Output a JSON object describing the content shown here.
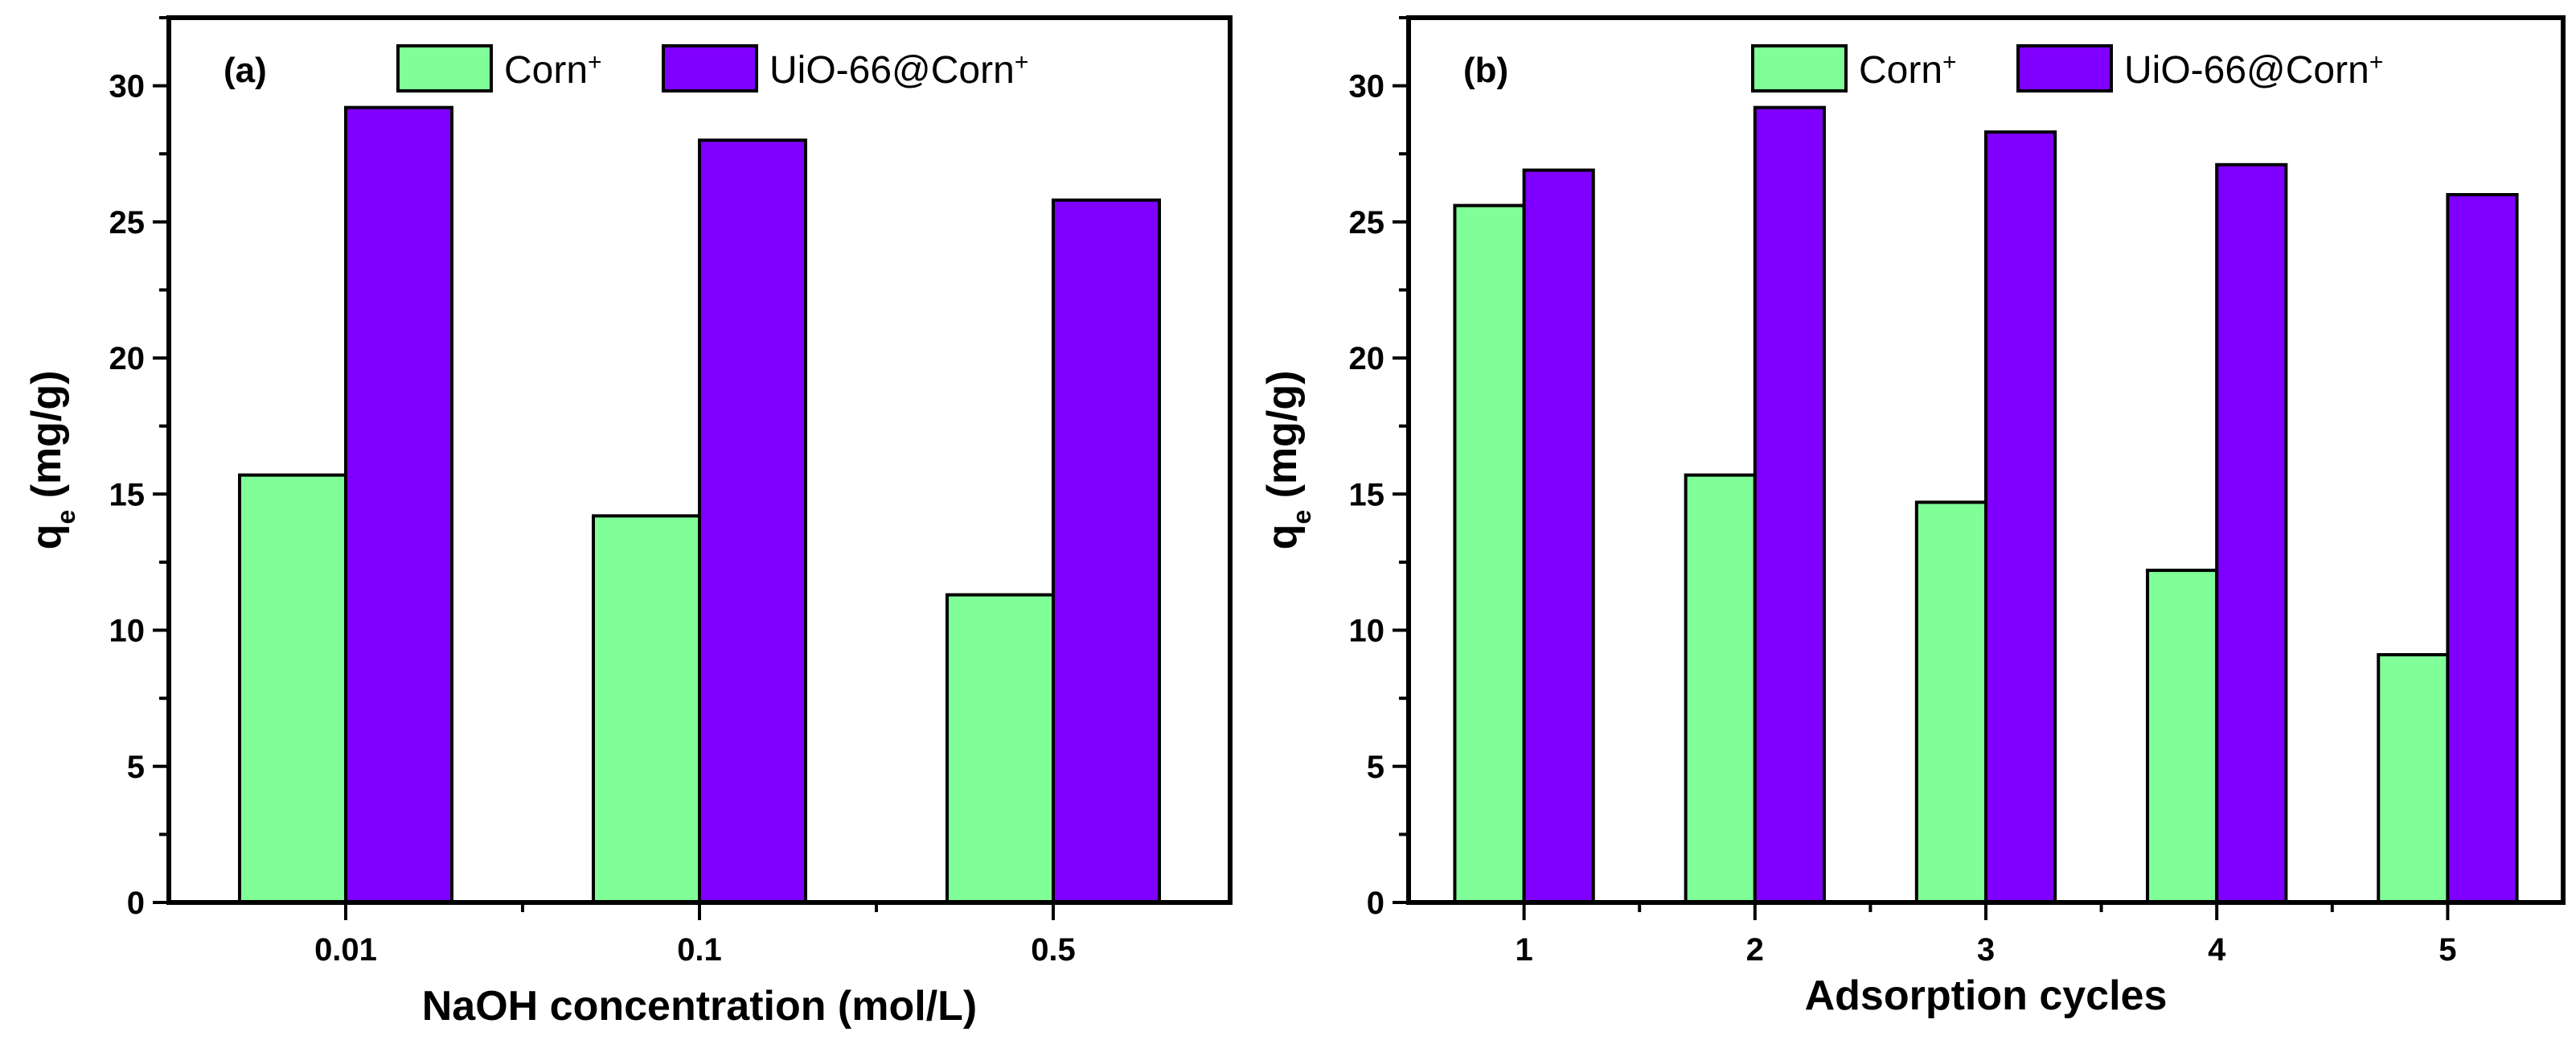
{
  "colors": {
    "corn": "#80ff99",
    "uio": "#8000ff",
    "frame": "#000000"
  },
  "legend": [
    {
      "name": "Corn",
      "superscript": "+",
      "color_key": "corn"
    },
    {
      "name": "UiO-66@Corn",
      "superscript": "+",
      "color_key": "uio"
    }
  ],
  "chart_data": [
    {
      "type": "bar",
      "panel_label": "(a)",
      "categories": [
        "0.01",
        "0.1",
        "0.5"
      ],
      "series": [
        {
          "name": "Corn+",
          "values": [
            15.7,
            14.2,
            11.3
          ]
        },
        {
          "name": "UiO-66@Corn+",
          "values": [
            29.2,
            28.0,
            25.8
          ]
        }
      ],
      "xlabel": "NaOH concentration (mol/L)",
      "ylabel_main": "q",
      "ylabel_sub": "e",
      "ylabel_rest": " (mg/g)",
      "ylim": [
        0,
        32.5
      ],
      "yticks": [
        0,
        5,
        10,
        15,
        20,
        25,
        30
      ],
      "legend_position": "top-center",
      "grid": false
    },
    {
      "type": "bar",
      "panel_label": "(b)",
      "categories": [
        "1",
        "2",
        "3",
        "4",
        "5"
      ],
      "series": [
        {
          "name": "Corn+",
          "values": [
            25.6,
            15.7,
            14.7,
            12.2,
            9.1
          ]
        },
        {
          "name": "UiO-66@Corn+",
          "values": [
            26.9,
            29.2,
            28.3,
            27.1,
            26.0
          ]
        }
      ],
      "xlabel": "Adsorption cycles",
      "ylabel_main": "q",
      "ylabel_sub": "e",
      "ylabel_rest": " (mg/g)",
      "ylim": [
        0,
        32.5
      ],
      "yticks": [
        0,
        5,
        10,
        15,
        20,
        25,
        30
      ],
      "legend_position": "top-center",
      "grid": false
    }
  ]
}
